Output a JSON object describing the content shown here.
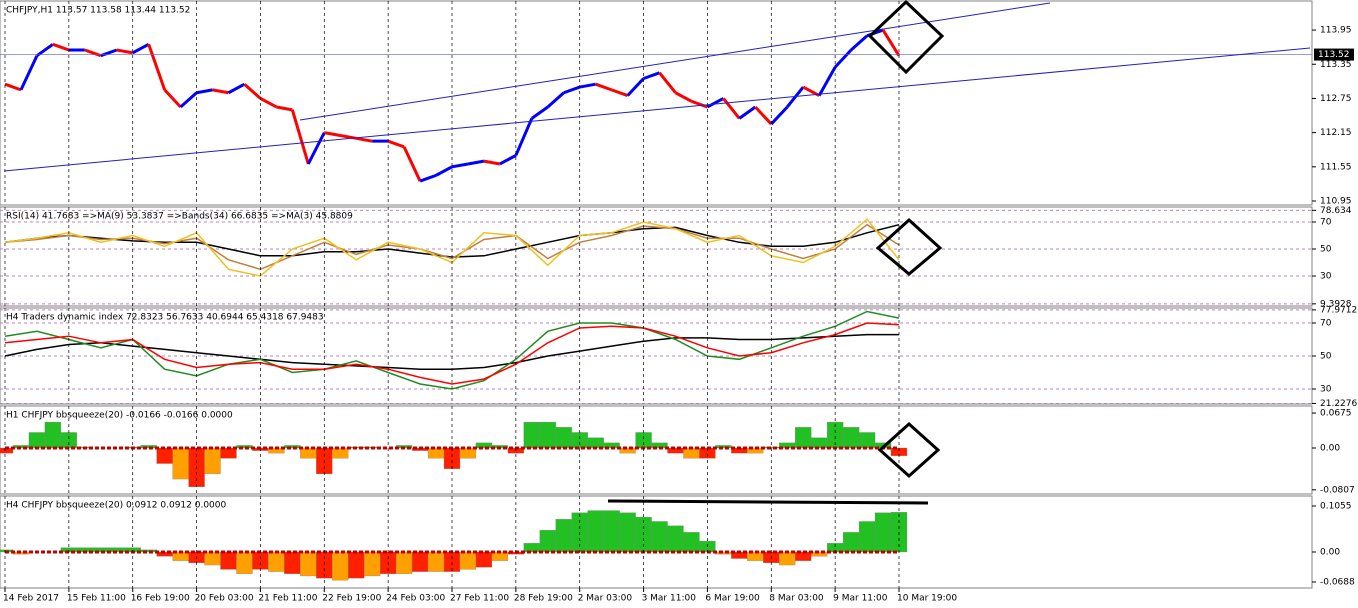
{
  "chart_data": [
    {
      "type": "candle-line",
      "title": "CHFJPY,H1  113.57 113.58 113.44 113.52",
      "ylim": [
        110.88,
        114.46
      ],
      "yticks": [
        113.95,
        113.35,
        112.75,
        112.15,
        111.55,
        110.95
      ],
      "grid": false,
      "current_price": 113.52,
      "series": [
        {
          "up_color": "#0000ff",
          "down_color": "#ff0000",
          "values": [
            113.0,
            112.9,
            113.5,
            113.7,
            113.6,
            113.6,
            113.5,
            113.6,
            113.55,
            113.7,
            112.9,
            112.6,
            112.85,
            112.9,
            112.85,
            113.0,
            112.75,
            112.6,
            112.55,
            111.6,
            112.15,
            112.1,
            112.05,
            112.0,
            112.0,
            111.9,
            111.3,
            111.4,
            111.55,
            111.6,
            111.65,
            111.6,
            111.75,
            112.4,
            112.6,
            112.85,
            112.95,
            113.0,
            112.9,
            112.8,
            113.1,
            113.2,
            112.85,
            112.7,
            112.6,
            112.75,
            112.4,
            112.6,
            112.3,
            112.6,
            112.95,
            112.8,
            113.3,
            113.6,
            113.85,
            113.95,
            113.5
          ]
        }
      ]
    },
    {
      "type": "line",
      "title": "RSI(14) 41.7683  =>MA(9) 53.3837  =>Bands(34) 66.6835  =>MA(3) 45.8809",
      "ylim": [
        7.8,
        81.1
      ],
      "yticks": [
        78.634,
        70,
        50,
        30,
        9.3928
      ],
      "grid": true,
      "series": [
        {
          "color": "#000000",
          "values": [
            55,
            58,
            60,
            58,
            56,
            55,
            55,
            50,
            45,
            45,
            48,
            48,
            50,
            47,
            44,
            45,
            50,
            55,
            60,
            62,
            65,
            66,
            60,
            55,
            52,
            52,
            55,
            62,
            68
          ]
        },
        {
          "color": "#c08040",
          "values": [
            55,
            57,
            60,
            57,
            58,
            54,
            58,
            42,
            35,
            45,
            55,
            46,
            53,
            50,
            43,
            57,
            60,
            43,
            55,
            60,
            67,
            65,
            58,
            58,
            50,
            43,
            50,
            68,
            53
          ]
        },
        {
          "color": "#f0c020",
          "values": [
            55,
            58,
            62,
            55,
            60,
            52,
            62,
            35,
            30,
            50,
            58,
            42,
            55,
            50,
            40,
            62,
            60,
            38,
            60,
            62,
            70,
            65,
            55,
            60,
            45,
            40,
            52,
            72,
            42
          ]
        }
      ]
    },
    {
      "type": "line",
      "title": "H4 Traders dynamic index 72.8323 56.7633 40.6944 65.4318 67.9483",
      "ylim": [
        20.9,
        79.1
      ],
      "yticks": [
        77.9712,
        70,
        50,
        30,
        21.2276
      ],
      "grid": true,
      "series": [
        {
          "color": "#000000",
          "values": [
            50,
            54,
            57,
            58,
            56,
            54,
            52,
            50,
            48,
            46,
            45,
            44,
            43,
            42,
            42,
            43,
            46,
            50,
            53,
            56,
            59,
            61,
            61,
            60,
            60,
            61,
            62,
            63,
            63
          ]
        },
        {
          "color": "#228b22",
          "values": [
            62,
            65,
            60,
            55,
            60,
            42,
            38,
            45,
            48,
            40,
            42,
            47,
            40,
            33,
            30,
            35,
            48,
            65,
            70,
            70,
            67,
            60,
            50,
            48,
            55,
            62,
            68,
            77,
            73
          ]
        },
        {
          "color": "#ff0000",
          "values": [
            58,
            60,
            62,
            58,
            60,
            48,
            43,
            45,
            46,
            42,
            42,
            45,
            42,
            37,
            33,
            36,
            45,
            58,
            67,
            68,
            67,
            62,
            55,
            50,
            52,
            58,
            63,
            70,
            69
          ]
        }
      ]
    },
    {
      "type": "histogram",
      "title": "H1 CHFJPY bbsqueeze(20) -0.0166 -0.0166 0.0000",
      "ylim": [
        -0.0888,
        0.0811
      ],
      "yticks": [
        0.0675,
        {
          "value": 0,
          "label": "0.00"
        },
        -0.0807
      ],
      "grid": false,
      "series": [
        {
          "pos_color": "#22c022",
          "neg_color": "#ff2000",
          "values": [
            -0.01,
            0.005,
            0.03,
            0.05,
            0.03,
            0.002,
            0,
            0,
            0.002,
            0.005,
            -0.03,
            -0.06,
            -0.075,
            -0.05,
            -0.02,
            0.005,
            -0.005,
            -0.01,
            0.005,
            -0.02,
            -0.05,
            -0.02,
            0.002,
            0.002,
            0,
            0.005,
            -0.005,
            -0.02,
            -0.04,
            -0.02,
            0.01,
            0.005,
            -0.01,
            0.05,
            0.05,
            0.04,
            0.03,
            0.02,
            0.01,
            -0.01,
            0.03,
            0.01,
            -0.01,
            -0.02,
            -0.02,
            0.005,
            -0.01,
            -0.01,
            0.002,
            0.01,
            0.04,
            0.02,
            0.05,
            0.04,
            0.03,
            0.01,
            -0.015
          ]
        }
      ]
    },
    {
      "type": "histogram",
      "title": "H4 CHFJPY bbsqueeze(20) 0.0912 0.0912 0.0000",
      "ylim": [
        -0.0826,
        0.1284
      ],
      "yticks": [
        0.1055,
        {
          "value": 0,
          "label": "0.00"
        },
        -0.0688
      ],
      "grid": false,
      "categories": [
        "14 Feb 2017",
        null,
        null,
        null,
        "15 Feb 11:00",
        null,
        null,
        null,
        "16 Feb 19:00",
        null,
        null,
        null,
        "20 Feb 03:00",
        null,
        null,
        null,
        "21 Feb 11:00",
        null,
        null,
        null,
        "22 Feb 19:00",
        null,
        null,
        null,
        "24 Feb 03:00",
        null,
        null,
        null,
        "27 Feb 11:00",
        null,
        null,
        null,
        "28 Feb 19:00",
        null,
        null,
        null,
        "2 Mar 03:00",
        null,
        null,
        null,
        "3 Mar 11:00",
        null,
        null,
        null,
        "6 Mar 19:00",
        null,
        null,
        null,
        "8 Mar 03:00",
        null,
        null,
        null,
        "9 Mar 11:00",
        null,
        null,
        null,
        "10 Mar 19:00"
      ],
      "series": [
        {
          "pos_color": "#22c022",
          "neg_color": "#ff2000",
          "values": [
            0.005,
            -0.005,
            0,
            0,
            0.01,
            0.01,
            0.01,
            0.01,
            0.01,
            0.005,
            -0.01,
            -0.02,
            -0.025,
            -0.03,
            -0.04,
            -0.05,
            -0.04,
            -0.045,
            -0.05,
            -0.055,
            -0.06,
            -0.065,
            -0.06,
            -0.055,
            -0.05,
            -0.05,
            -0.045,
            -0.045,
            -0.045,
            -0.04,
            -0.035,
            -0.02,
            -0.005,
            0.02,
            0.05,
            0.075,
            0.09,
            0.095,
            0.095,
            0.09,
            0.08,
            0.07,
            0.06,
            0.045,
            0.025,
            -0.005,
            -0.015,
            -0.02,
            -0.025,
            -0.03,
            -0.02,
            -0.01,
            0.02,
            0.045,
            0.07,
            0.09,
            0.0912
          ]
        }
      ]
    }
  ]
}
